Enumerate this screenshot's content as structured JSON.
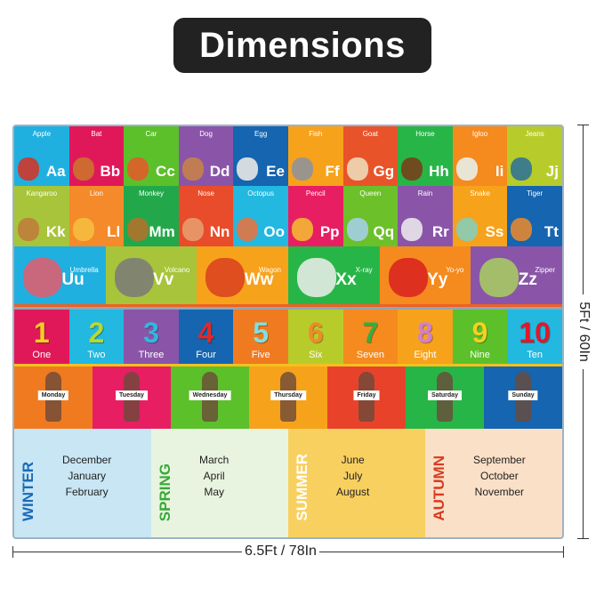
{
  "title": "Dimensions",
  "dimensions": {
    "height": "5Ft / 60In",
    "width": "6.5Ft / 78In"
  },
  "alphabet_row1": [
    {
      "word": "Apple",
      "letter": "Aa",
      "color": "#1fb0e0",
      "pic": "#d9301f"
    },
    {
      "word": "Bat",
      "letter": "Bb",
      "color": "#e0185a",
      "pic": "#c9782a"
    },
    {
      "word": "Car",
      "letter": "Cc",
      "color": "#5cc02a",
      "pic": "#e8572a"
    },
    {
      "word": "Dog",
      "letter": "Dd",
      "color": "#8a55a8",
      "pic": "#c98545"
    },
    {
      "word": "Egg",
      "letter": "Ee",
      "color": "#1565b0",
      "pic": "#f4f0e8"
    },
    {
      "word": "Fish",
      "letter": "Ff",
      "color": "#f7a21b",
      "pic": "#8a93a0"
    },
    {
      "word": "Goat",
      "letter": "Gg",
      "color": "#e8532a",
      "pic": "#efe0c0"
    },
    {
      "word": "Horse",
      "letter": "Hh",
      "color": "#28b548",
      "pic": "#7a3a1a"
    },
    {
      "word": "Igloo",
      "letter": "Ii",
      "color": "#f58a1f",
      "pic": "#e6f4f4"
    },
    {
      "word": "Jeans",
      "letter": "Jj",
      "color": "#b7cc2a",
      "pic": "#2a6e9a"
    }
  ],
  "alphabet_row2": [
    {
      "word": "Kangaroo",
      "letter": "Kk",
      "color": "#a8c43a",
      "pic": "#c07a3a"
    },
    {
      "word": "Lion",
      "letter": "Ll",
      "color": "#f58a2a",
      "pic": "#f4c040"
    },
    {
      "word": "Monkey",
      "letter": "Mm",
      "color": "#22a84a",
      "pic": "#b9702a"
    },
    {
      "word": "Nose",
      "letter": "Nn",
      "color": "#e84c2a",
      "pic": "#e8a070"
    },
    {
      "word": "Octopus",
      "letter": "Oo",
      "color": "#22b8e0",
      "pic": "#f0703a"
    },
    {
      "word": "Pencil",
      "letter": "Pp",
      "color": "#e81e63",
      "pic": "#f4c030"
    },
    {
      "word": "Queen",
      "letter": "Qq",
      "color": "#6cc02a",
      "pic": "#a8d0f0"
    },
    {
      "word": "Rain",
      "letter": "Rr",
      "color": "#8a55a8",
      "pic": "#eeeeee"
    },
    {
      "word": "Snake",
      "letter": "Ss",
      "color": "#f7a21b",
      "pic": "#80d0c0"
    },
    {
      "word": "Tiger",
      "letter": "Tt",
      "color": "#1565b0",
      "pic": "#f08a2a"
    }
  ],
  "alphabet_row3": [
    {
      "word": "Umbrella",
      "letter": "Uu",
      "color": "#1fb0e0",
      "pic": "#e85a6a"
    },
    {
      "word": "Volcano",
      "letter": "Vv",
      "color": "#a8c43a",
      "pic": "#7a7a7a"
    },
    {
      "word": "Wagon",
      "letter": "Ww",
      "color": "#f7a21b",
      "pic": "#d9401f"
    },
    {
      "word": "X-ray",
      "letter": "Xx",
      "color": "#28b548",
      "pic": "#eeeeee"
    },
    {
      "word": "Yo-yo",
      "letter": "Yy",
      "color": "#f58a1f",
      "pic": "#d9201f"
    },
    {
      "word": "Zipper",
      "letter": "Zz",
      "color": "#8a55a8",
      "pic": "#a8d060"
    }
  ],
  "numbers": [
    {
      "digit": "1",
      "word": "One",
      "color": "#e0185a",
      "digit_color": "#f4d020"
    },
    {
      "digit": "2",
      "word": "Two",
      "color": "#22b8e0",
      "digit_color": "#b8d830"
    },
    {
      "digit": "3",
      "word": "Three",
      "color": "#8a55a8",
      "digit_color": "#30b8e0"
    },
    {
      "digit": "4",
      "word": "Four",
      "color": "#1565b0",
      "digit_color": "#e02a2a"
    },
    {
      "digit": "5",
      "word": "Five",
      "color": "#f07a20",
      "digit_color": "#80e0e0"
    },
    {
      "digit": "6",
      "word": "Six",
      "color": "#b7cc2a",
      "digit_color": "#f08a2a"
    },
    {
      "digit": "7",
      "word": "Seven",
      "color": "#f58a1f",
      "digit_color": "#30b040"
    },
    {
      "digit": "8",
      "word": "Eight",
      "color": "#f7a21b",
      "digit_color": "#d080d0"
    },
    {
      "digit": "9",
      "word": "Nine",
      "color": "#5cc02a",
      "digit_color": "#f4d020"
    },
    {
      "digit": "10",
      "word": "Ten",
      "color": "#22b8e0",
      "digit_color": "#e0182a"
    }
  ],
  "days": [
    {
      "label": "Monday",
      "color": "#f07a20"
    },
    {
      "label": "Tuesday",
      "color": "#e81e63"
    },
    {
      "label": "Wednesday",
      "color": "#5cc02a"
    },
    {
      "label": "Thursday",
      "color": "#f7a21b"
    },
    {
      "label": "Friday",
      "color": "#e8432a"
    },
    {
      "label": "Saturday",
      "color": "#28b548"
    },
    {
      "label": "Sunday",
      "color": "#1565b0"
    }
  ],
  "seasons": [
    {
      "title": "WINTER",
      "months": [
        "December",
        "January",
        "February"
      ],
      "color": "#c8e6f4",
      "title_color": "#1a6ab8"
    },
    {
      "title": "SPRING",
      "months": [
        "March",
        "April",
        "May"
      ],
      "color": "#e8f4e0",
      "title_color": "#38a838"
    },
    {
      "title": "SUMMER",
      "months": [
        "June",
        "July",
        "August"
      ],
      "color": "#f8d060",
      "title_color": "#ffffff"
    },
    {
      "title": "AUTUMN",
      "months": [
        "September",
        "October",
        "November"
      ],
      "color": "#fbe0c8",
      "title_color": "#d83a1f"
    }
  ]
}
